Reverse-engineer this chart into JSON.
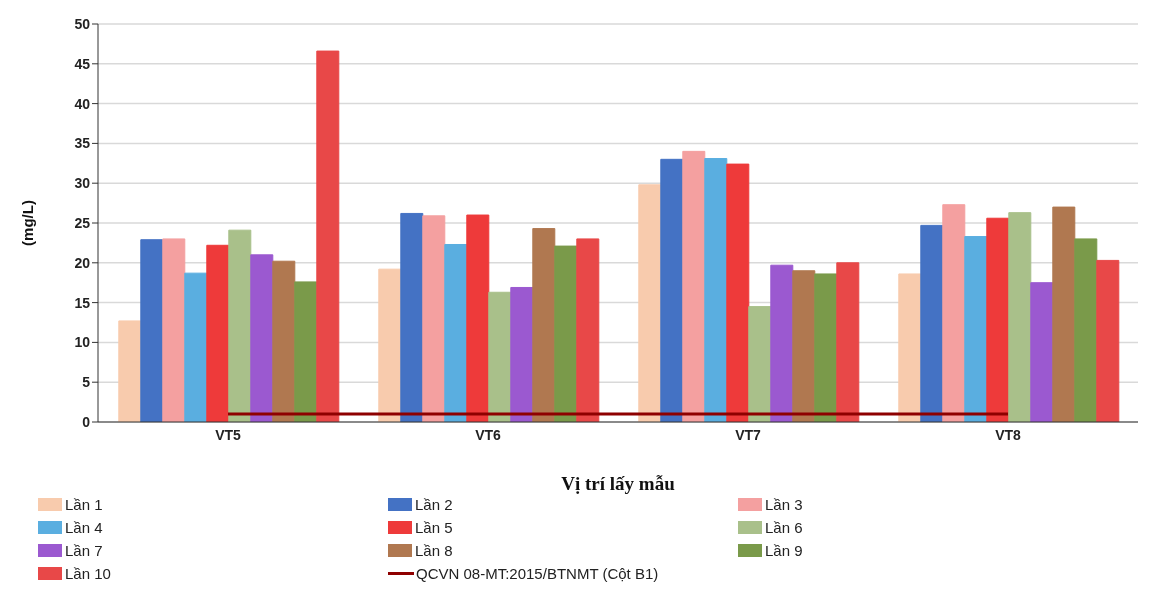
{
  "chart_data": {
    "type": "bar",
    "xlabel": "Vị trí lấy mẫu",
    "ylabel": "(mg/L)",
    "categories": [
      "VT5",
      "VT6",
      "VT7",
      "VT8"
    ],
    "series": [
      {
        "name": "Lần 1",
        "color": "#f8cbad",
        "values": [
          12.7,
          19.2,
          29.8,
          18.6
        ]
      },
      {
        "name": "Lần 2",
        "color": "#4472c4",
        "values": [
          22.9,
          26.2,
          33.0,
          24.7
        ]
      },
      {
        "name": "Lần 3",
        "color": "#f4a0a0",
        "values": [
          23.0,
          25.9,
          34.0,
          27.3
        ]
      },
      {
        "name": "Lần 4",
        "color": "#5aaee0",
        "values": [
          18.7,
          22.3,
          33.1,
          23.3
        ]
      },
      {
        "name": "Lần 5",
        "color": "#ee3a3a",
        "values": [
          22.2,
          26.0,
          32.4,
          25.6
        ]
      },
      {
        "name": "Lần 6",
        "color": "#a9c08a",
        "values": [
          24.1,
          16.3,
          14.5,
          26.3
        ]
      },
      {
        "name": "Lần 7",
        "color": "#9b59d0",
        "values": [
          21.0,
          16.9,
          19.7,
          17.5
        ]
      },
      {
        "name": "Lần 8",
        "color": "#b07850",
        "values": [
          20.2,
          24.3,
          19.0,
          27.0
        ]
      },
      {
        "name": "Lần 9",
        "color": "#7a9a4a",
        "values": [
          17.6,
          22.1,
          18.6,
          23.0
        ]
      },
      {
        "name": "Lần 10",
        "color": "#e84848",
        "values": [
          46.6,
          23.0,
          20.0,
          20.3
        ]
      },
      {
        "name": "QCVN 08-MT:2015/BTNMT (Cột B1)",
        "type": "line",
        "color": "#8e0000",
        "values": [
          1,
          1,
          1,
          1
        ]
      }
    ],
    "ylim": [
      0,
      50
    ],
    "yticks": [
      0,
      5,
      10,
      15,
      20,
      25,
      30,
      35,
      40,
      45,
      50
    ],
    "grid": "y",
    "legend": "bottom",
    "marker": "none"
  }
}
